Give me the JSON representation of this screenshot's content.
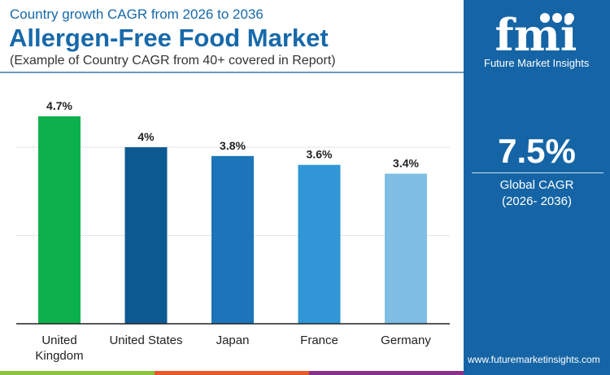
{
  "header": {
    "subtitle": "Country growth CAGR from 2026 to 2036",
    "title": "Allergen-Free Food Market",
    "note": "(Example of Country CAGR from 40+ covered in Report)"
  },
  "panel": {
    "brand": "Future Market Insights",
    "logo_text": "fmi",
    "global_value": "7.5%",
    "global_label": "Global CAGR",
    "global_period": "(2026- 2036)",
    "url": "www.futuremarketinsights.com",
    "color": "#1565a6"
  },
  "chart_data": {
    "type": "bar",
    "categories": [
      "United Kingdom",
      "United States",
      "Japan",
      "France",
      "Germany"
    ],
    "values": [
      4.7,
      4.0,
      3.8,
      3.6,
      3.4
    ],
    "data_labels": [
      "4.7%",
      "4%",
      "3.8%",
      "3.6%",
      "3.4%"
    ],
    "colors": [
      "#0db14b",
      "#0d5a92",
      "#1b75b8",
      "#3096d6",
      "#7fbde4"
    ],
    "ylim": [
      0,
      5.4
    ],
    "grid": true,
    "gridlines": [
      2,
      4
    ]
  },
  "bottom_bar_colors": [
    "#8cc43f",
    "#e8582a",
    "#8b2f8a"
  ]
}
